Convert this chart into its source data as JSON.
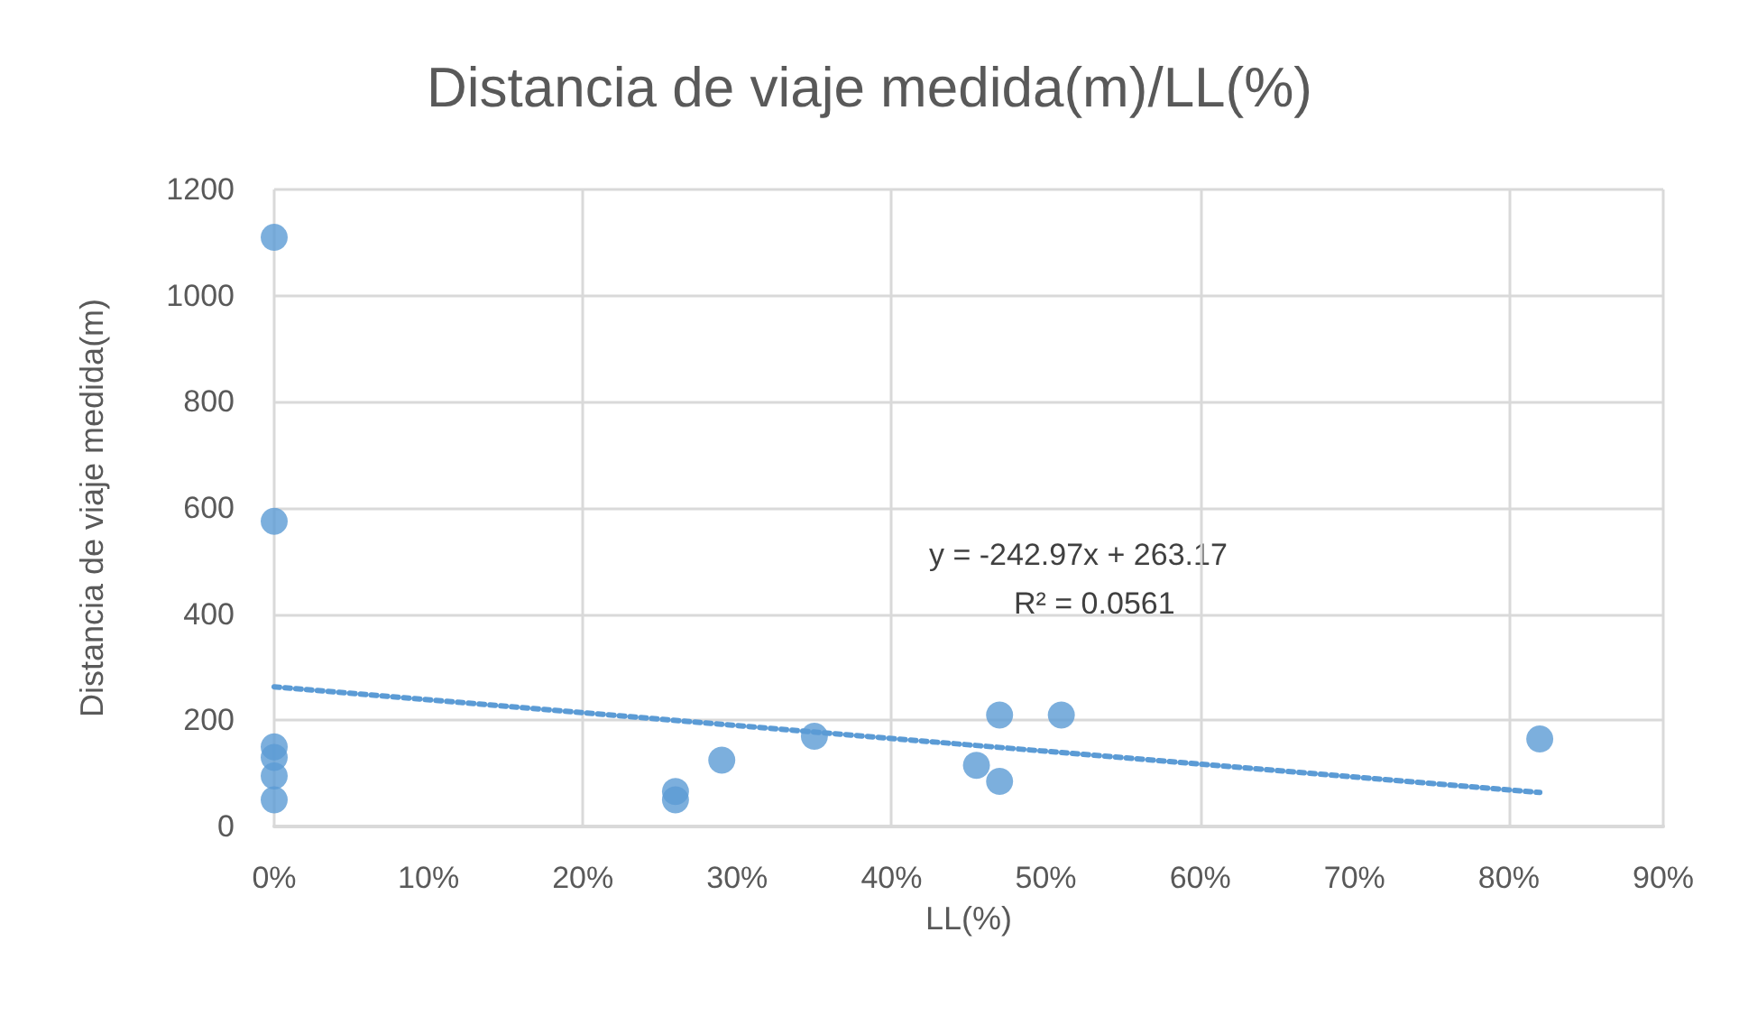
{
  "chart_data": {
    "type": "scatter",
    "title": "Distancia de viaje medida(m)/LL(%)",
    "xlabel": "LL(%)",
    "ylabel": "Distancia de viaje medida(m)",
    "x": [
      0,
      0,
      0,
      0,
      0,
      0,
      26,
      26,
      29,
      35,
      45.5,
      47,
      47,
      51,
      82
    ],
    "series": [
      {
        "color": "#5b9bd5",
        "marker": "circle",
        "values": [
          1110,
          575,
          150,
          130,
          95,
          50,
          66,
          50,
          125,
          170,
          115,
          210,
          85,
          210,
          165
        ]
      },
      {
        "type": "line",
        "color": "#5b9bd5",
        "line_style": "dotted",
        "marker": "none",
        "x": [
          0,
          82
        ],
        "values": [
          263,
          64
        ]
      }
    ],
    "xlim": [
      0,
      90
    ],
    "xticks": [
      {
        "value": 0,
        "label": "0%"
      },
      {
        "value": 10,
        "label": "10%"
      },
      {
        "value": 20,
        "label": "20%"
      },
      {
        "value": 30,
        "label": "30%"
      },
      {
        "value": 40,
        "label": "40%"
      },
      {
        "value": 50,
        "label": "50%"
      },
      {
        "value": 60,
        "label": "60%"
      },
      {
        "value": 70,
        "label": "70%"
      },
      {
        "value": 80,
        "label": "80%"
      },
      {
        "value": 90,
        "label": "90%"
      }
    ],
    "ylim": [
      0,
      1200
    ],
    "yticks": [
      0,
      200,
      400,
      600,
      800,
      1000,
      1200
    ],
    "grid": true,
    "annotations": [
      "y = -242.97x + 263.17",
      "R² = 0.0561"
    ]
  }
}
